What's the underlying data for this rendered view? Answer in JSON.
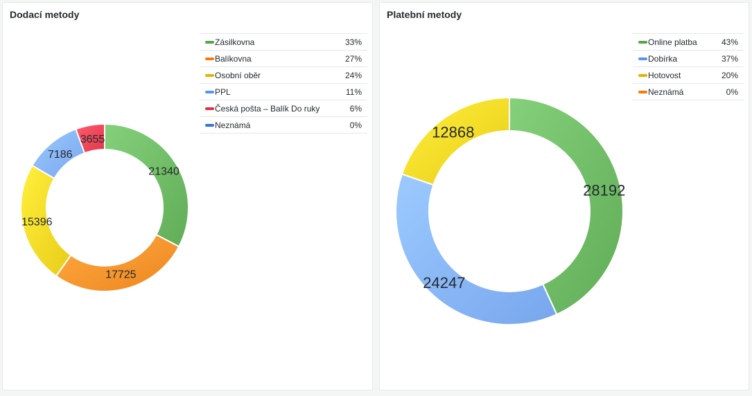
{
  "panels": [
    {
      "title": "Dodací metody",
      "legend": [
        {
          "name": "Zásilkovna",
          "pct": "33%",
          "color": "#56a64b"
        },
        {
          "name": "Balíkovna",
          "pct": "27%",
          "color": "#ff780a"
        },
        {
          "name": "Osobní oběr",
          "pct": "24%",
          "color": "#e0b400"
        },
        {
          "name": "PPL",
          "pct": "11%",
          "color": "#5794f2"
        },
        {
          "name": "Česká pošta – Balík Do ruky",
          "pct": "6%",
          "color": "#e02f44"
        },
        {
          "name": "Neznámá",
          "pct": "0%",
          "color": "#3274d9"
        }
      ]
    },
    {
      "title": "Platební metody",
      "legend": [
        {
          "name": "Online platba",
          "pct": "43%",
          "color": "#56a64b"
        },
        {
          "name": "Dobírka",
          "pct": "37%",
          "color": "#5794f2"
        },
        {
          "name": "Hotovost",
          "pct": "20%",
          "color": "#e0b400"
        },
        {
          "name": "Neznámá",
          "pct": "0%",
          "color": "#ff780a"
        }
      ]
    }
  ],
  "chart_data": [
    {
      "type": "pie",
      "title": "Dodací metody",
      "categories": [
        "Zásilkovna",
        "Balíkovna",
        "Osobní oběr",
        "PPL",
        "Česká pošta – Balík Do ruky",
        "Neznámá"
      ],
      "values": [
        21340,
        17725,
        15396,
        7186,
        3655,
        0
      ],
      "colors": [
        "#73bf69",
        "#ff9830",
        "#fade2a",
        "#8ab8ff",
        "#f2495c",
        "#3274d9"
      ],
      "donut": true,
      "legend": "right-top"
    },
    {
      "type": "pie",
      "title": "Platební metody",
      "categories": [
        "Online platba",
        "Dobírka",
        "Hotovost",
        "Neznámá"
      ],
      "values": [
        28192,
        24247,
        12868,
        0
      ],
      "colors": [
        "#73bf69",
        "#8ab8ff",
        "#fade2a",
        "#ff9830"
      ],
      "donut": true,
      "legend": "right-top"
    }
  ]
}
